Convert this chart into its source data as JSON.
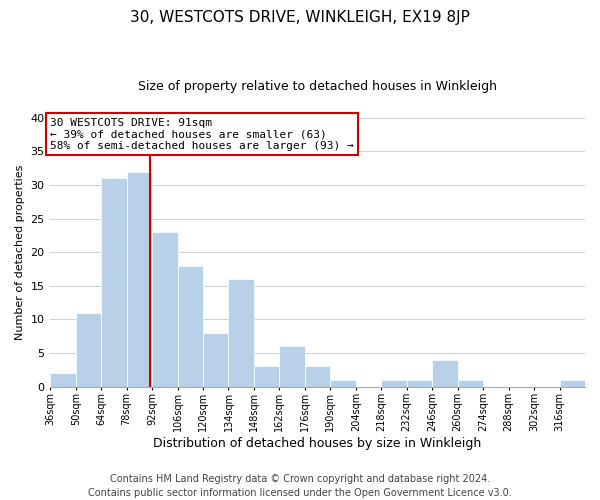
{
  "title": "30, WESTCOTS DRIVE, WINKLEIGH, EX19 8JP",
  "subtitle": "Size of property relative to detached houses in Winkleigh",
  "xlabel": "Distribution of detached houses by size in Winkleigh",
  "ylabel": "Number of detached properties",
  "bin_edges": [
    36,
    50,
    64,
    78,
    92,
    106,
    120,
    134,
    148,
    162,
    176,
    190,
    204,
    218,
    232,
    246,
    260,
    274,
    288,
    302,
    316,
    330
  ],
  "counts": [
    2,
    11,
    31,
    32,
    23,
    18,
    8,
    16,
    3,
    6,
    3,
    1,
    0,
    1,
    1,
    4,
    1,
    0,
    0,
    0,
    1
  ],
  "bar_color": "#b8d0e8",
  "bar_edge_color": "#ffffff",
  "bar_linewidth": 0.5,
  "vline_x": 91,
  "vline_color": "#cc0000",
  "vline_linewidth": 1.5,
  "annotation_line1": "30 WESTCOTS DRIVE: 91sqm",
  "annotation_line2": "← 39% of detached houses are smaller (63)",
  "annotation_line3": "58% of semi-detached houses are larger (93) →",
  "annotation_box_color": "#ffffff",
  "annotation_box_edge": "#cc0000",
  "annotation_fontsize": 8,
  "ylim": [
    0,
    40
  ],
  "tick_labels": [
    "36sqm",
    "50sqm",
    "64sqm",
    "78sqm",
    "92sqm",
    "106sqm",
    "120sqm",
    "134sqm",
    "148sqm",
    "162sqm",
    "176sqm",
    "190sqm",
    "204sqm",
    "218sqm",
    "232sqm",
    "246sqm",
    "260sqm",
    "274sqm",
    "288sqm",
    "302sqm",
    "316sqm"
  ],
  "footer_text": "Contains HM Land Registry data © Crown copyright and database right 2024.\nContains public sector information licensed under the Open Government Licence v3.0.",
  "background_color": "#ffffff",
  "grid_color": "#d0d0d0",
  "title_fontsize": 11,
  "subtitle_fontsize": 9,
  "xlabel_fontsize": 9,
  "ylabel_fontsize": 8,
  "footer_fontsize": 7
}
